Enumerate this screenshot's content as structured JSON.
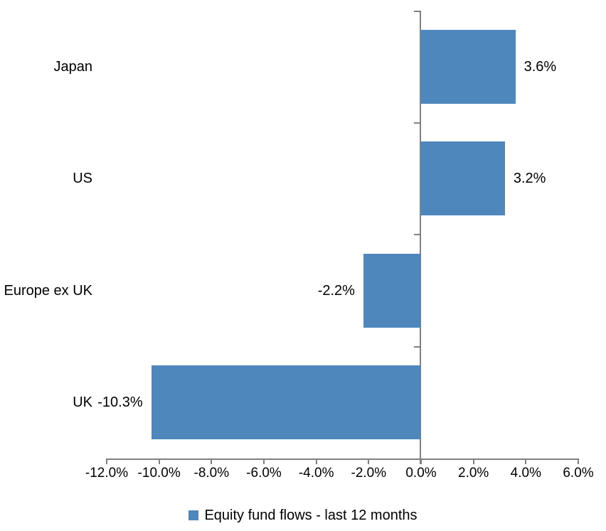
{
  "chart_data": {
    "type": "bar",
    "orientation": "horizontal",
    "title": "",
    "xlabel": "",
    "ylabel": "",
    "categories": [
      "Japan",
      "US",
      "Europe ex UK",
      "UK"
    ],
    "series": [
      {
        "name": "Equity fund flows - last 12 months",
        "values": [
          3.6,
          3.2,
          -2.2,
          -10.3
        ]
      }
    ],
    "data_labels": [
      "3.6%",
      "3.2%",
      "-2.2%",
      "-10.3%"
    ],
    "x_axis": {
      "min": -12,
      "max": 6,
      "tick_step": 2,
      "tick_labels": [
        "-12.0%",
        "-10.0%",
        "-8.0%",
        "-6.0%",
        "-4.0%",
        "-2.0%",
        "0.0%",
        "2.0%",
        "4.0%",
        "6.0%"
      ]
    },
    "grid": false,
    "legend_position": "bottom",
    "legend": {
      "label": "Equity fund flows - last 12 months",
      "swatch_color": "#4D87BB"
    },
    "colors": {
      "bar": "#4D87BB",
      "axis": "#808080",
      "text": "#000000",
      "background": "#FFFFFF"
    }
  }
}
